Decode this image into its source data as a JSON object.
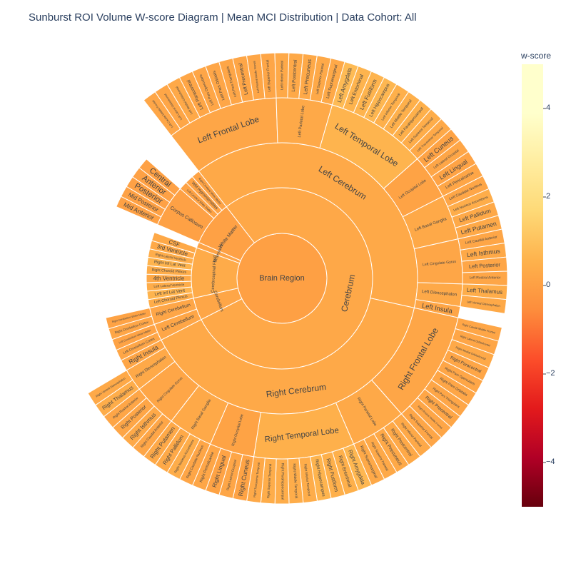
{
  "chart_data": {
    "type": "sunburst",
    "title": "Sunburst ROI Volume W-score Diagram | Mean MCI Distribution | Data Cohort: All",
    "colorbar": {
      "title": "w-score",
      "range": [
        -5,
        5
      ],
      "ticks": [
        {
          "value": 4,
          "label": "4"
        },
        {
          "value": 2,
          "label": "2"
        },
        {
          "value": 0,
          "label": "0"
        },
        {
          "value": -2,
          "label": "−2"
        },
        {
          "value": -4,
          "label": "−4"
        }
      ],
      "colorscale": [
        "#67000d",
        "#b10026",
        "#e31a1c",
        "#fc4e2a",
        "#fd8d3c",
        "#feb24c",
        "#fed976",
        "#ffeda0",
        "#ffffcc",
        "#ffffcc"
      ]
    },
    "tree": {
      "label": "Brain Region",
      "w": 0.0,
      "children": [
        {
          "label": "Cerebrum",
          "w": 0.25,
          "children": [
            {
              "label": "Left Cerebrum",
              "w": 0.3,
              "children": [
                {
                  "label": "Left Frontal Lobe",
                  "w": 0.2,
                  "children": [
                    {
                      "label": "Left Caudal Middle Frontal",
                      "w": 0.2
                    },
                    {
                      "label": "Left Lateral Orbitofrontal",
                      "w": 0.2
                    },
                    {
                      "label": "Left Medial Orbitofrontal",
                      "w": 0.3
                    },
                    {
                      "label": "Left Paracentral",
                      "w": 0.2
                    },
                    {
                      "label": "Left Pars Opercularis",
                      "w": 0.2
                    },
                    {
                      "label": "Left Pars Orbitalis",
                      "w": 0.2
                    },
                    {
                      "label": "Left Pars Triangularis",
                      "w": 0.2
                    },
                    {
                      "label": "Left Precentral",
                      "w": 0.2
                    },
                    {
                      "label": "Left Rostral Middle Frontal",
                      "w": 0.2
                    },
                    {
                      "label": "Left Superior Frontal",
                      "w": 0.2
                    }
                  ]
                },
                {
                  "label": "Left Parietal Lobe",
                  "w": 0.3,
                  "children": [
                    {
                      "label": "Left Inferior Parietal",
                      "w": 0.3
                    },
                    {
                      "label": "Left Postcentral",
                      "w": 0.3
                    },
                    {
                      "label": "Left Precuneus",
                      "w": 0.3
                    },
                    {
                      "label": "Left Superior Parietal",
                      "w": 0.3
                    },
                    {
                      "label": "Left Supramarginal",
                      "w": 0.3
                    }
                  ]
                },
                {
                  "label": "Left Temporal Lobe",
                  "w": 0.6,
                  "children": [
                    {
                      "label": "Left Amygdala",
                      "w": 0.8
                    },
                    {
                      "label": "Left Entorhinal",
                      "w": 0.6
                    },
                    {
                      "label": "Left Fusiform",
                      "w": 0.6
                    },
                    {
                      "label": "Left Hippocampus",
                      "w": 0.7
                    },
                    {
                      "label": "Left Inferior Temporal",
                      "w": 0.5
                    },
                    {
                      "label": "Left Middle Temporal",
                      "w": 0.5
                    },
                    {
                      "label": "Left Parahippocampal",
                      "w": 0.5
                    },
                    {
                      "label": "Left Superior Temporal",
                      "w": 0.4
                    },
                    {
                      "label": "Left Transverse Temporal",
                      "w": 0.3
                    }
                  ]
                },
                {
                  "label": "Left Occipital Lobe",
                  "w": 0.1,
                  "children": [
                    {
                      "label": "Left Cuneus",
                      "w": 0.1
                    },
                    {
                      "label": "Left Lateral Occipital",
                      "w": 0.2
                    },
                    {
                      "label": "Left Lingual",
                      "w": 0.1
                    },
                    {
                      "label": "Left Pericalcarine",
                      "w": 0.2
                    }
                  ]
                },
                {
                  "label": "Left Basal Ganglia",
                  "w": 0.3,
                  "children": [
                    {
                      "label": "Left Caudate Nucleus",
                      "w": 0.2
                    },
                    {
                      "label": "Left Nucleus Accumbens",
                      "w": 0.4
                    },
                    {
                      "label": "Left Pallidum",
                      "w": 0.3
                    },
                    {
                      "label": "Left Putamen",
                      "w": 0.3
                    }
                  ]
                },
                {
                  "label": "Left Cingulate Gyrus",
                  "w": 0.2,
                  "children": [
                    {
                      "label": "Left Caudal Anterior",
                      "w": 0.2
                    },
                    {
                      "label": "Left Isthmus",
                      "w": 0.3
                    },
                    {
                      "label": "Left Posterior",
                      "w": 0.2
                    },
                    {
                      "label": "Left Rostral Anterior",
                      "w": 0.2
                    }
                  ]
                },
                {
                  "label": "Left Diencephalon",
                  "w": 0.3,
                  "children": [
                    {
                      "label": "Left Thalamus",
                      "w": 0.4
                    },
                    {
                      "label": "Left Ventral Diencephalon",
                      "w": 0.3
                    }
                  ]
                },
                {
                  "label": "Left Insula",
                  "w": 0.2,
                  "children": []
                }
              ]
            },
            {
              "label": "Right Cerebrum",
              "w": 0.3,
              "children": [
                {
                  "label": "Right Frontal Lobe",
                  "w": 0.2,
                  "children": [
                    {
                      "label": "Right Caudal Middle Frontal",
                      "w": 0.2
                    },
                    {
                      "label": "Right Lateral Orbitofrontal",
                      "w": 0.2
                    },
                    {
                      "label": "Right Medial Orbitofrontal",
                      "w": 0.3
                    },
                    {
                      "label": "Right Paracentral",
                      "w": 0.2
                    },
                    {
                      "label": "Right Pars Opercularis",
                      "w": 0.2
                    },
                    {
                      "label": "Right Pars Orbitalis",
                      "w": 0.2
                    },
                    {
                      "label": "Right Pars Triangularis",
                      "w": 0.2
                    },
                    {
                      "label": "Right Precentral",
                      "w": 0.2
                    },
                    {
                      "label": "Right Rostral Middle Frontal",
                      "w": 0.2
                    },
                    {
                      "label": "Right Superior Frontal",
                      "w": 0.2
                    }
                  ]
                },
                {
                  "label": "Right Parietal Lobe",
                  "w": 0.3,
                  "children": [
                    {
                      "label": "Right Inferior Parietal",
                      "w": 0.3
                    },
                    {
                      "label": "Right Postcentral",
                      "w": 0.3
                    },
                    {
                      "label": "Right Precuneus",
                      "w": 0.3
                    },
                    {
                      "label": "Right Superior Parietal",
                      "w": 0.3
                    },
                    {
                      "label": "Right Supramarginal",
                      "w": 0.3
                    }
                  ]
                },
                {
                  "label": "Right Temporal Lobe",
                  "w": 0.5,
                  "children": [
                    {
                      "label": "Right Amygdala",
                      "w": 0.7
                    },
                    {
                      "label": "Right Entorhinal",
                      "w": 0.5
                    },
                    {
                      "label": "Right Fusiform",
                      "w": 0.5
                    },
                    {
                      "label": "Right Hippocampus",
                      "w": 0.6
                    },
                    {
                      "label": "Right Inferior Temporal",
                      "w": 0.4
                    },
                    {
                      "label": "Right Middle Temporal",
                      "w": 0.4
                    },
                    {
                      "label": "Right Parahippocampal",
                      "w": 0.4
                    },
                    {
                      "label": "Right Superior Temporal",
                      "w": 0.4
                    },
                    {
                      "label": "Right Transverse Temporal",
                      "w": 0.3
                    }
                  ]
                },
                {
                  "label": "Right Occipital Lobe",
                  "w": 0.1,
                  "children": [
                    {
                      "label": "Right Cuneus",
                      "w": 0.1
                    },
                    {
                      "label": "Right Lateral Occipital",
                      "w": 0.2
                    },
                    {
                      "label": "Right Lingual",
                      "w": 0.1
                    },
                    {
                      "label": "Right Pericalcarine",
                      "w": 0.2
                    }
                  ]
                },
                {
                  "label": "Right Basal Ganglia",
                  "w": 0.3,
                  "children": [
                    {
                      "label": "Right Caudate Nucleus",
                      "w": 0.2
                    },
                    {
                      "label": "Right Nucleus Accumbens",
                      "w": 0.4
                    },
                    {
                      "label": "Right Pallidum",
                      "w": 0.3
                    },
                    {
                      "label": "Right Putamen",
                      "w": 0.3
                    }
                  ]
                },
                {
                  "label": "Right Cingulate Gyrus",
                  "w": 0.2,
                  "children": [
                    {
                      "label": "Right Caudal Anterior",
                      "w": 0.2
                    },
                    {
                      "label": "Right Isthmus",
                      "w": 0.3
                    },
                    {
                      "label": "Right Posterior",
                      "w": 0.2
                    },
                    {
                      "label": "Right Rostral Anterior",
                      "w": 0.2
                    }
                  ]
                },
                {
                  "label": "Right Diencephalon",
                  "w": 0.3,
                  "children": [
                    {
                      "label": "Right Thalamus",
                      "w": 0.4
                    },
                    {
                      "label": "Right Ventral Diencephalon",
                      "w": 0.3
                    }
                  ]
                },
                {
                  "label": "Right Insula",
                  "w": 0.2,
                  "children": []
                }
              ]
            }
          ]
        },
        {
          "label": "Cerebellum",
          "w": 0.2,
          "children": [
            {
              "label": "Left Cerebellum",
              "w": 0.2,
              "children": [
                {
                  "label": "Left Cerebellum Cortex",
                  "w": 0.2
                },
                {
                  "label": "Left Cerebellum White Matter",
                  "w": 0.1
                }
              ]
            },
            {
              "label": "Right Cerebellum",
              "w": 0.2,
              "children": [
                {
                  "label": "Right Cerebellum Cortex",
                  "w": 0.2
                },
                {
                  "label": "Right Cerebellum White Matter",
                  "w": 0.1
                }
              ]
            }
          ]
        },
        {
          "label": "Cerebrospinal Fluid",
          "w": 0.35,
          "children": [
            {
              "label": "Left Choroid Plexus",
              "w": 0.4
            },
            {
              "label": "Left Inf Lat Vent",
              "w": 0.6
            },
            {
              "label": "Left Lateral Ventricle",
              "w": 0.4
            },
            {
              "label": "4th Ventricle",
              "w": 0.3
            },
            {
              "label": "Right Choroid Plexus",
              "w": 0.4
            },
            {
              "label": "Right Inf Lat Vent",
              "w": 0.6
            },
            {
              "label": "Right Lateral Ventricle",
              "w": 0.4
            },
            {
              "label": "3rd Ventricle",
              "w": 0.3
            },
            {
              "label": "CSF",
              "w": 0.3
            }
          ]
        },
        {
          "label": "Brainstem",
          "w": 0.15,
          "children": []
        },
        {
          "label": "White Matter",
          "w": 0.05,
          "children": [
            {
              "label": "Corpus Callosum",
              "w": 0.05,
              "children": [
                {
                  "label": "Mid Anterior",
                  "w": 0.05
                },
                {
                  "label": "Mid Posterior",
                  "w": 0.05
                },
                {
                  "label": "Posterior",
                  "w": 0.05
                },
                {
                  "label": "Anterior",
                  "w": 0.05
                },
                {
                  "label": "Central",
                  "w": 0.05
                }
              ]
            },
            {
              "label": "Left Cerebral White Matter",
              "w": 0.1
            },
            {
              "label": "WM Hypointensities",
              "w": 0.1
            },
            {
              "label": "Right Cerebral White Matter",
              "w": 0.1
            }
          ]
        }
      ]
    }
  }
}
